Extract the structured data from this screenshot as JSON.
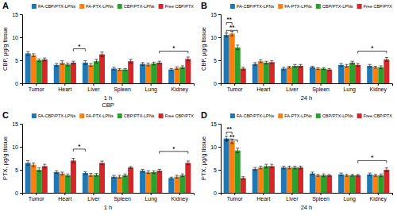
{
  "chart_data": [
    {
      "type": "bar",
      "title": "A",
      "xlabel": "1 h",
      "ylabel": "CBP, μg/g tissue",
      "caption": "CBP",
      "categories": [
        "Tumor",
        "Heart",
        "Liver",
        "Spleen",
        "Lung",
        "Kidney"
      ],
      "series": [
        {
          "name": "FA-CBP/PTX-LPNs",
          "values": [
            6.5,
            4.0,
            4.5,
            3.2,
            4.2,
            3.0
          ],
          "errors": [
            0.4,
            0.3,
            0.4,
            0.3,
            0.3,
            0.2
          ]
        },
        {
          "name": "FA-PTX-LPNs",
          "values": [
            6.1,
            4.5,
            4.0,
            3.0,
            4.1,
            3.3
          ],
          "errors": [
            0.3,
            0.4,
            0.3,
            0.2,
            0.3,
            0.3
          ]
        },
        {
          "name": "CBP/PTX-LPNs",
          "values": [
            5.0,
            4.1,
            4.8,
            3.0,
            4.3,
            3.5
          ],
          "errors": [
            0.3,
            0.3,
            0.4,
            0.2,
            0.3,
            0.3
          ]
        },
        {
          "name": "Free CBP/PTX",
          "values": [
            5.2,
            4.5,
            6.3,
            4.8,
            4.5,
            5.3
          ],
          "errors": [
            0.3,
            0.3,
            0.5,
            0.4,
            0.3,
            0.4
          ]
        }
      ],
      "annotations": [
        {
          "text": "*",
          "y": 7.5,
          "x1": "Heart",
          "series1": "Free CBP/PTX",
          "x2": "Liver",
          "series2": "FA-CBP/PTX-LPNs"
        },
        {
          "text": "*",
          "y": 7.0,
          "x1": "Lung",
          "series1": "Free CBP/PTX",
          "x2": "Kidney",
          "series2": "Free CBP/PTX"
        }
      ],
      "ylim": [
        0,
        15
      ],
      "yticks": [
        0,
        5,
        10,
        15
      ],
      "grid": false,
      "legend": "upper right"
    },
    {
      "type": "bar",
      "title": "B",
      "xlabel": "24 h",
      "ylabel": "CBP, μg/g tissue",
      "categories": [
        "Tumor",
        "Heart",
        "Liver",
        "Spleen",
        "Lung",
        "Kidney"
      ],
      "series": [
        {
          "name": "FA-CBP/PTX-LPNs",
          "values": [
            10.5,
            4.2,
            3.2,
            3.5,
            4.0,
            3.8
          ],
          "errors": [
            0.4,
            0.3,
            0.3,
            0.2,
            0.3,
            0.3
          ]
        },
        {
          "name": "FA-PTX-LPNs",
          "values": [
            10.8,
            4.8,
            3.5,
            3.2,
            3.8,
            3.5
          ],
          "errors": [
            0.5,
            0.3,
            0.2,
            0.2,
            0.3,
            0.2
          ]
        },
        {
          "name": "CBP/PTX-LPNs",
          "values": [
            7.8,
            4.5,
            3.8,
            3.2,
            4.5,
            3.5
          ],
          "errors": [
            0.5,
            0.3,
            0.3,
            0.2,
            0.3,
            0.3
          ]
        },
        {
          "name": "Free CBP/PTX",
          "values": [
            3.2,
            4.6,
            3.8,
            3.0,
            4.0,
            5.2
          ],
          "errors": [
            0.3,
            0.3,
            0.3,
            0.2,
            0.3,
            0.4
          ]
        }
      ],
      "annotations": [
        {
          "text": "**",
          "y": 13.2,
          "x1": "Tumor",
          "series1": "FA-CBP/PTX-LPNs",
          "x2": "Tumor",
          "series2": "FA-PTX-LPNs"
        },
        {
          "text": "**",
          "y": 11.5,
          "x1": "Tumor",
          "series1": "FA-CBP/PTX-LPNs",
          "x2": "Tumor",
          "series2": "CBP/PTX-LPNs"
        },
        {
          "text": "*",
          "y": 7.0,
          "x1": "Lung",
          "series1": "Free CBP/PTX",
          "x2": "Kidney",
          "series2": "Free CBP/PTX"
        }
      ],
      "ylim": [
        0,
        15
      ],
      "yticks": [
        0,
        5,
        10,
        15
      ],
      "grid": false,
      "legend": "upper right"
    },
    {
      "type": "bar",
      "title": "C",
      "xlabel": "1 h",
      "ylabel": "PTX, μg/g tissue",
      "categories": [
        "Tumor",
        "Heart",
        "Liver",
        "Spleen",
        "Lung",
        "Kidney"
      ],
      "series": [
        {
          "name": "FA-CBP/PTX-LPNs",
          "values": [
            6.5,
            4.5,
            4.3,
            3.5,
            4.8,
            3.2
          ],
          "errors": [
            0.5,
            0.3,
            0.3,
            0.3,
            0.3,
            0.2
          ]
        },
        {
          "name": "FA-PTX-LPNs",
          "values": [
            6.1,
            4.2,
            3.9,
            3.5,
            4.5,
            3.5
          ],
          "errors": [
            0.4,
            0.3,
            0.3,
            0.3,
            0.3,
            0.3
          ]
        },
        {
          "name": "CBP/PTX-LPNs",
          "values": [
            5.0,
            3.8,
            3.9,
            3.8,
            4.5,
            3.8
          ],
          "errors": [
            0.4,
            0.3,
            0.3,
            0.3,
            0.3,
            0.3
          ]
        },
        {
          "name": "Free CBP/PTX",
          "values": [
            5.8,
            7.0,
            6.5,
            5.5,
            4.8,
            6.5
          ],
          "errors": [
            0.4,
            0.5,
            0.4,
            0.2,
            0.3,
            0.4
          ]
        }
      ],
      "annotations": [
        {
          "text": "*",
          "y": 9.5,
          "x1": "Heart",
          "series1": "Free CBP/PTX",
          "x2": "Liver",
          "series2": "FA-CBP/PTX-LPNs"
        },
        {
          "text": "*",
          "y": 9.0,
          "x1": "Lung",
          "series1": "Free CBP/PTX",
          "x2": "Kidney",
          "series2": "Free CBP/PTX"
        }
      ],
      "ylim": [
        0,
        15
      ],
      "yticks": [
        0,
        5,
        10,
        15
      ],
      "grid": false,
      "legend": "upper right"
    },
    {
      "type": "bar",
      "title": "D",
      "xlabel": "24 h",
      "ylabel": "PTX, μg/g tissue",
      "categories": [
        "Tumor",
        "Heart",
        "Liver",
        "Spleen",
        "Lung",
        "Kidney"
      ],
      "series": [
        {
          "name": "FA-CBP/PTX-LPNs",
          "values": [
            11.8,
            5.2,
            5.5,
            4.2,
            4.0,
            4.0
          ],
          "errors": [
            0.5,
            0.3,
            0.3,
            0.3,
            0.3,
            0.3
          ]
        },
        {
          "name": "FA-PTX-LPNs",
          "values": [
            11.2,
            5.5,
            5.5,
            3.8,
            3.8,
            3.8
          ],
          "errors": [
            0.5,
            0.3,
            0.3,
            0.2,
            0.2,
            0.2
          ]
        },
        {
          "name": "CBP/PTX-LPNs",
          "values": [
            9.2,
            5.8,
            5.5,
            3.8,
            3.8,
            3.8
          ],
          "errors": [
            0.5,
            0.4,
            0.3,
            0.3,
            0.2,
            0.3
          ]
        },
        {
          "name": "Free CBP/PTX",
          "values": [
            3.2,
            5.8,
            5.5,
            3.8,
            3.8,
            5.0
          ],
          "errors": [
            0.3,
            0.4,
            0.3,
            0.2,
            0.2,
            0.4
          ]
        }
      ],
      "annotations": [
        {
          "text": "**",
          "y": 13.2,
          "x1": "Tumor",
          "series1": "FA-CBP/PTX-LPNs",
          "x2": "Tumor",
          "series2": "FA-PTX-LPNs"
        },
        {
          "text": "**",
          "y": 11.5,
          "x1": "Tumor",
          "series1": "FA-CBP/PTX-LPNs",
          "x2": "Tumor",
          "series2": "CBP/PTX-LPNs"
        },
        {
          "text": "*",
          "y": 7.0,
          "x1": "Lung",
          "series1": "Free CBP/PTX",
          "x2": "Kidney",
          "series2": "Free CBP/PTX"
        }
      ],
      "ylim": [
        0,
        15
      ],
      "yticks": [
        0,
        5,
        10,
        15
      ],
      "grid": false,
      "legend": "upper right"
    }
  ]
}
